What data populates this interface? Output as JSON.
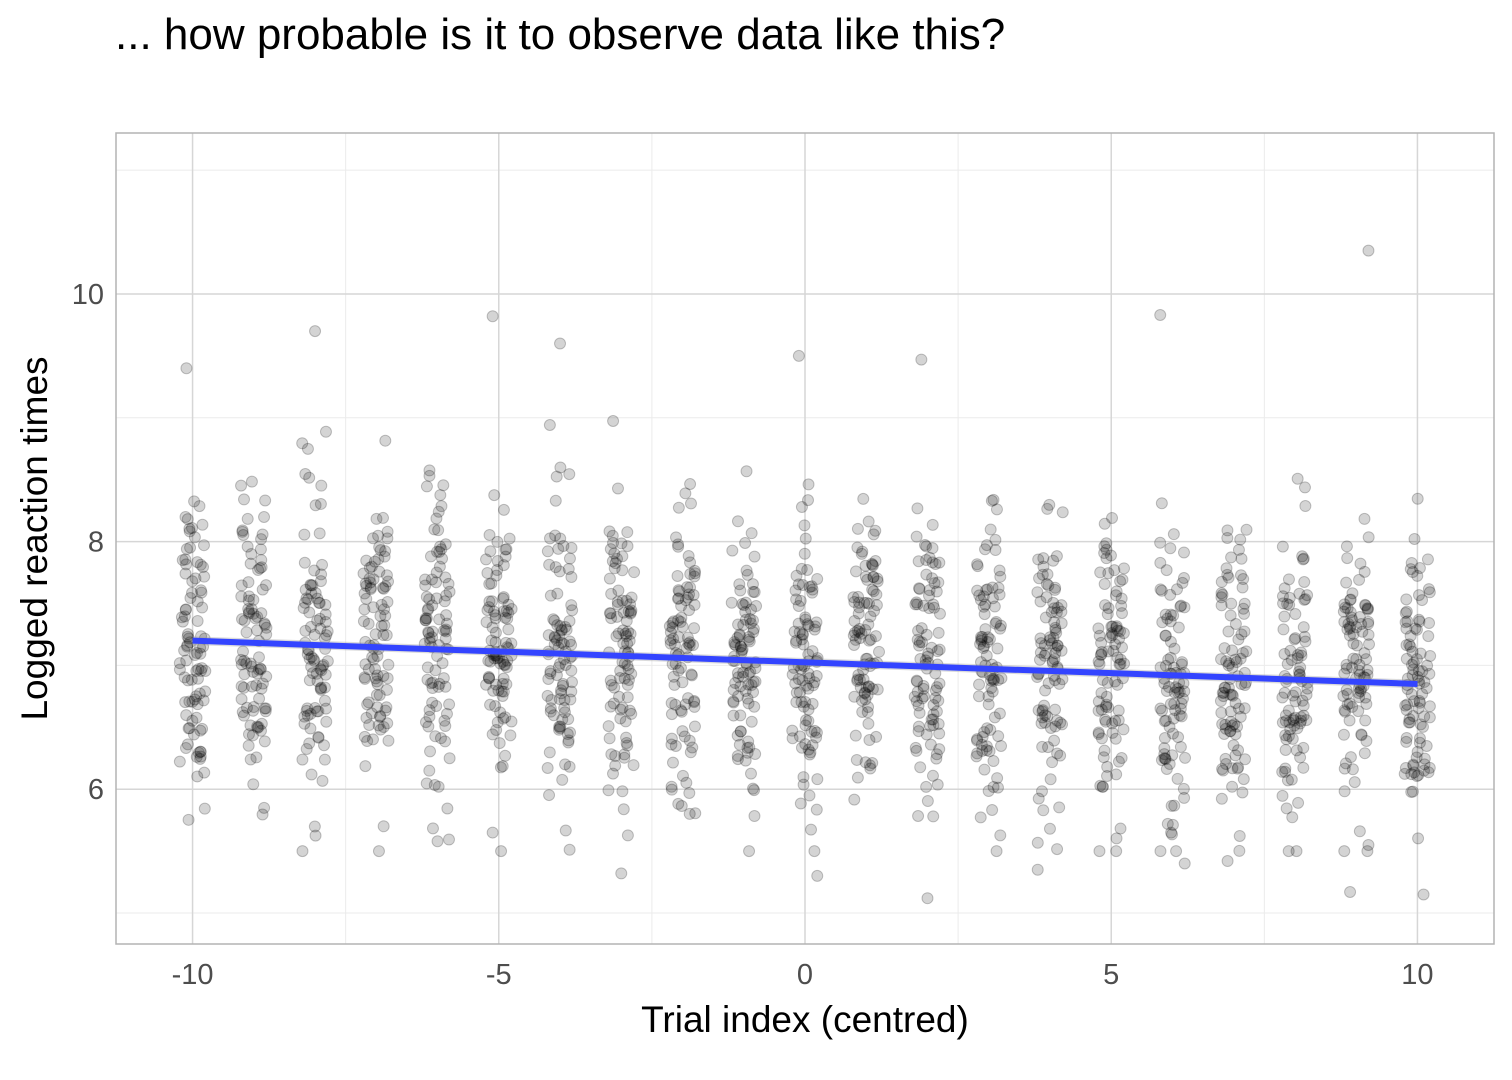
{
  "chart_data": {
    "type": "scatter",
    "title": "... how probable is it to observe data like this?",
    "xlabel": "Trial index (centred)",
    "ylabel": "Logged reaction times",
    "xlim": [
      -11.25,
      11.25
    ],
    "ylim": [
      4.75,
      11.3
    ],
    "x_ticks": [
      -10,
      -5,
      0,
      5,
      10
    ],
    "x_tick_labels": [
      "-10",
      "-5",
      "0",
      "5",
      "10"
    ],
    "y_ticks": [
      6,
      8,
      10
    ],
    "y_tick_labels": [
      "6",
      "8",
      "10"
    ],
    "grid": true,
    "point_color": "#000000",
    "point_opacity": 0.17,
    "trend_color": "#3344ff",
    "trend_line": {
      "x": [
        -10,
        10
      ],
      "y": [
        7.2,
        6.85
      ]
    },
    "notable_points": [
      {
        "x": -5.1,
        "y": 9.82
      },
      {
        "x": -8,
        "y": 9.7
      },
      {
        "x": 5.8,
        "y": 9.83
      },
      {
        "x": 9.2,
        "y": 10.35
      },
      {
        "x": -10.1,
        "y": 9.4
      },
      {
        "x": -4,
        "y": 9.6
      },
      {
        "x": 1.9,
        "y": 9.47
      },
      {
        "x": -0.1,
        "y": 9.5
      },
      {
        "x": 2,
        "y": 5.12
      },
      {
        "x": 10.1,
        "y": 5.15
      },
      {
        "x": 8.9,
        "y": 5.17
      },
      {
        "x": 0.2,
        "y": 5.3
      },
      {
        "x": -3,
        "y": 5.32
      },
      {
        "x": 3.8,
        "y": 5.35
      },
      {
        "x": -6,
        "y": 5.58
      },
      {
        "x": -5.1,
        "y": 5.65
      },
      {
        "x": 6.2,
        "y": 5.4
      },
      {
        "x": 6.9,
        "y": 5.42
      },
      {
        "x": 9.2,
        "y": 5.55
      }
    ],
    "groups": [
      {
        "x": -10,
        "mean": 7.2,
        "sd": 0.6,
        "n": 90
      },
      {
        "x": -9,
        "mean": 7.18,
        "sd": 0.6,
        "n": 90
      },
      {
        "x": -8,
        "mean": 7.16,
        "sd": 0.6,
        "n": 90
      },
      {
        "x": -7,
        "mean": 7.15,
        "sd": 0.6,
        "n": 90
      },
      {
        "x": -6,
        "mean": 7.13,
        "sd": 0.6,
        "n": 90
      },
      {
        "x": -5,
        "mean": 7.11,
        "sd": 0.6,
        "n": 90
      },
      {
        "x": -4,
        "mean": 7.1,
        "sd": 0.6,
        "n": 90
      },
      {
        "x": -3,
        "mean": 7.08,
        "sd": 0.6,
        "n": 90
      },
      {
        "x": -2,
        "mean": 7.06,
        "sd": 0.6,
        "n": 90
      },
      {
        "x": -1,
        "mean": 7.04,
        "sd": 0.6,
        "n": 90
      },
      {
        "x": 0,
        "mean": 7.03,
        "sd": 0.6,
        "n": 90
      },
      {
        "x": 1,
        "mean": 7.01,
        "sd": 0.6,
        "n": 90
      },
      {
        "x": 2,
        "mean": 6.99,
        "sd": 0.6,
        "n": 90
      },
      {
        "x": 3,
        "mean": 6.97,
        "sd": 0.6,
        "n": 90
      },
      {
        "x": 4,
        "mean": 6.95,
        "sd": 0.6,
        "n": 90
      },
      {
        "x": 5,
        "mean": 6.94,
        "sd": 0.6,
        "n": 90
      },
      {
        "x": 6,
        "mean": 6.92,
        "sd": 0.6,
        "n": 90
      },
      {
        "x": 7,
        "mean": 6.9,
        "sd": 0.6,
        "n": 90
      },
      {
        "x": 8,
        "mean": 6.88,
        "sd": 0.6,
        "n": 90
      },
      {
        "x": 9,
        "mean": 6.87,
        "sd": 0.6,
        "n": 90
      },
      {
        "x": 10,
        "mean": 6.85,
        "sd": 0.6,
        "n": 90
      }
    ]
  }
}
